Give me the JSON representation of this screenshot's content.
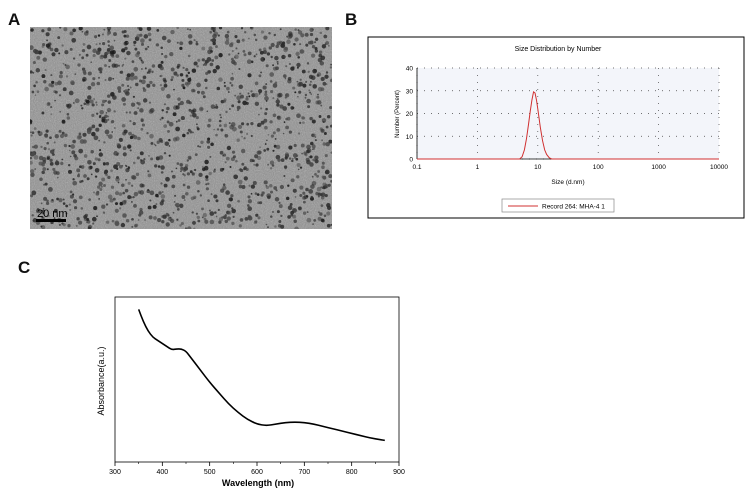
{
  "panels": {
    "a": {
      "label": "A",
      "scale_bar": "20 nm"
    },
    "b": {
      "label": "B"
    },
    "c": {
      "label": "C"
    }
  },
  "chart_data": [
    {
      "type": "line",
      "panel": "B",
      "title": "Size Distribution by Number",
      "xlabel": "Size (d.nm)",
      "ylabel": "Number (Percent)",
      "xscale": "log",
      "xlim": [
        0.1,
        10000
      ],
      "ylim": [
        0,
        40
      ],
      "x_ticks": [
        "0.1",
        "1",
        "10",
        "100",
        "1000",
        "10000"
      ],
      "y_ticks": [
        "0",
        "10",
        "20",
        "30",
        "40"
      ],
      "grid": true,
      "legend_position": "bottom",
      "series": [
        {
          "name": "Record 264: MHA-4 1",
          "color": "#d03030",
          "x": [
            5.0,
            5.5,
            6.0,
            6.5,
            7.0,
            7.5,
            8.0,
            8.5,
            9.0,
            9.5,
            10.0,
            11.0,
            12.0,
            13.0,
            14.0,
            15.5,
            17.0
          ],
          "y": [
            0,
            1,
            4,
            9,
            15,
            21,
            26,
            29.5,
            29,
            26,
            22,
            14,
            8,
            4,
            2,
            0.5,
            0
          ]
        }
      ]
    },
    {
      "type": "line",
      "panel": "C",
      "xlabel": "Wavelength (nm)",
      "ylabel": "Absorbance(a.u.)",
      "xlim": [
        300,
        900
      ],
      "ylim": [
        0,
        1
      ],
      "x_ticks": [
        "300",
        "400",
        "500",
        "600",
        "700",
        "800",
        "900"
      ],
      "y_ticks_shown": false,
      "series": [
        {
          "color": "#000000",
          "x": [
            350,
            360,
            370,
            380,
            390,
            400,
            410,
            420,
            430,
            440,
            450,
            460,
            480,
            500,
            520,
            540,
            560,
            580,
            600,
            620,
            640,
            660,
            680,
            700,
            720,
            740,
            760,
            780,
            800,
            820,
            840,
            860,
            870
          ],
          "y": [
            0.92,
            0.84,
            0.78,
            0.74,
            0.72,
            0.7,
            0.68,
            0.66,
            0.665,
            0.665,
            0.65,
            0.61,
            0.53,
            0.45,
            0.38,
            0.31,
            0.255,
            0.21,
            0.18,
            0.17,
            0.18,
            0.19,
            0.193,
            0.19,
            0.18,
            0.165,
            0.15,
            0.135,
            0.12,
            0.105,
            0.09,
            0.08,
            0.075
          ]
        }
      ]
    }
  ]
}
